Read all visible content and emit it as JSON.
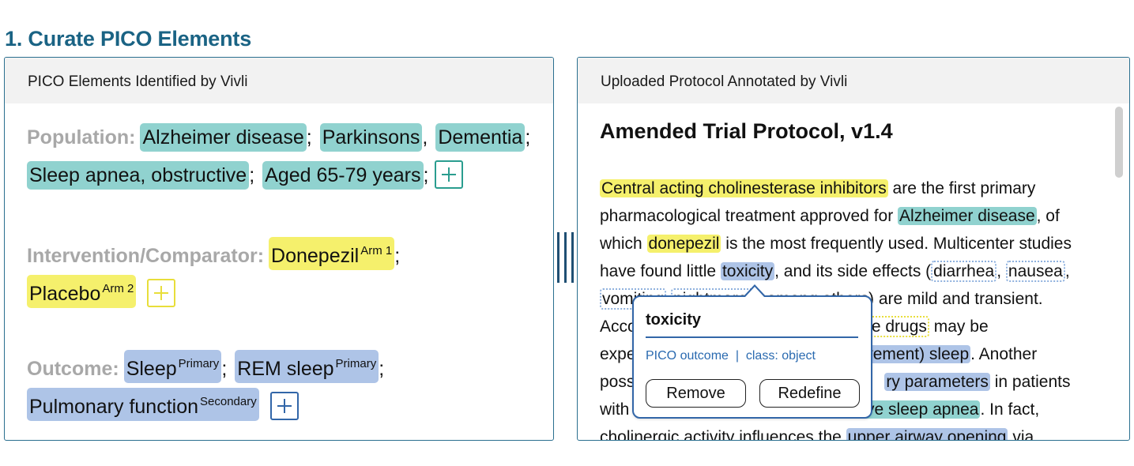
{
  "page": {
    "heading": "1. Curate PICO Elements"
  },
  "left_panel": {
    "header": "PICO Elements Identified by Vivli",
    "population": {
      "label": "Population:",
      "items": [
        {
          "text": "Alzheimer disease",
          "sep": ";"
        },
        {
          "text": "Parkinsons",
          "sep": ","
        },
        {
          "text": "Dementia",
          "sep": ";"
        },
        {
          "text": "Sleep apnea, obstructive",
          "sep": ";"
        },
        {
          "text": "Aged 65-79 years",
          "sep": ";"
        }
      ]
    },
    "intervention": {
      "label": "Intervention/Comparator:",
      "items": [
        {
          "text": "Donepezil",
          "tag": "Arm 1",
          "sep": ";"
        },
        {
          "text": "Placebo",
          "tag": "Arm 2",
          "sep": ""
        }
      ]
    },
    "outcome": {
      "label": "Outcome:",
      "items": [
        {
          "text": "Sleep",
          "tag": "Primary",
          "sep": ";"
        },
        {
          "text": "REM sleep",
          "tag": "Primary",
          "sep": ";"
        },
        {
          "text": "Pulmonary function",
          "tag": "Secondary",
          "sep": ""
        }
      ]
    },
    "colors": {
      "population": "#90d2cf",
      "intervention": "#f5f06c",
      "outcome": "#aec4e7"
    }
  },
  "right_panel": {
    "header": "Uploaded Protocol Annotated by Vivli",
    "doc_title": "Amended Trial Protocol, v1.4",
    "lines": {
      "l1": {
        "a": "Central acting cholinesterase inhibitors",
        "b": " are the first primary"
      },
      "l2": {
        "a": "pharmacological treatment approved for ",
        "b": "Alzheimer disease",
        "c": ", of"
      },
      "l3": {
        "a": "which ",
        "b": "donepezil",
        "c": " is the most frequently used. Multicenter studies"
      },
      "l4": {
        "a": "have found little ",
        "b": "toxicity",
        "c": ", and its side effects (",
        "d": "diarrhea",
        "e": ", ",
        "f": "nausea",
        "g": ","
      },
      "l5": {
        "a": "vomiting",
        "b": " ",
        "c": "nightmares",
        "d": ", among others) are mild and transient."
      },
      "l6": {
        "a": "Acco",
        "b": "ic active drugs",
        "c": " may be"
      },
      "l7": {
        "a": "expe",
        "b": "ovement) sleep",
        "c": ". Another"
      },
      "l8": {
        "a": "poss",
        "b": "ry parameters",
        "c": " in patients"
      },
      "l9": {
        "a": "with",
        "b": "ive sleep apnea",
        "c": ". In fact,"
      },
      "l10": {
        "a": "cholinergic activity influences the ",
        "b": "upper airway opening",
        "c": " via"
      }
    }
  },
  "popover": {
    "term": "toxicity",
    "meta": "PICO outcome  |  class: object",
    "remove_label": "Remove",
    "redefine_label": "Redefine"
  }
}
